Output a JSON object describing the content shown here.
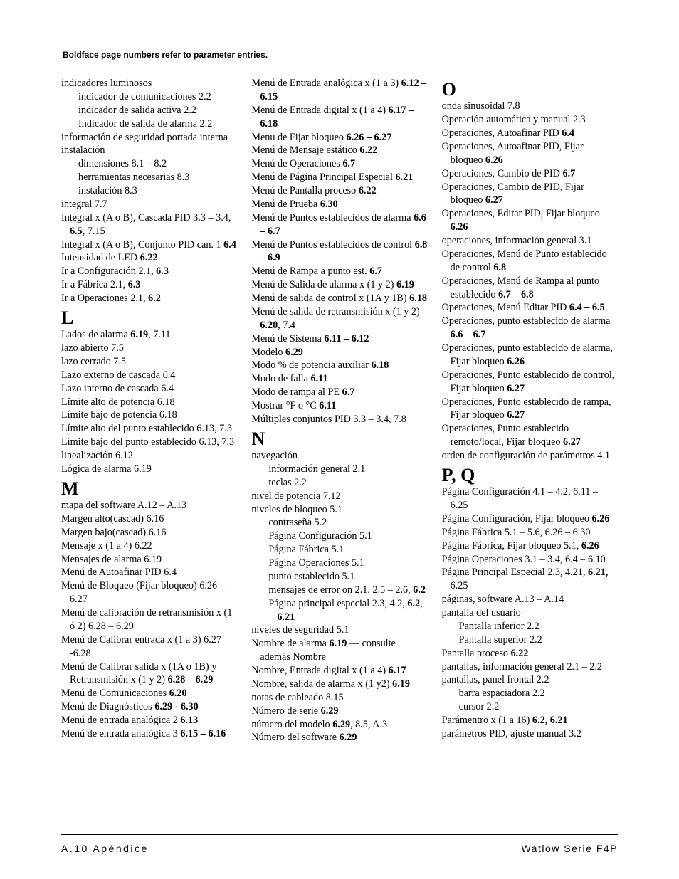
{
  "note": "Boldface page numbers refer to parameter entries.",
  "footer_left": "A.10   Apéndice",
  "footer_right": "Watlow Serie F4P",
  "columns": [
    {
      "items": [
        {
          "t": "entry",
          "bind": "c0.i0",
          "text": "indicadores luminosos"
        },
        {
          "t": "sub1",
          "bind": "c0.i1",
          "text": "indicador de comunicaciones  2.2"
        },
        {
          "t": "sub1",
          "bind": "c0.i2",
          "text": "indicador de salida activa  2.2"
        },
        {
          "t": "sub1",
          "bind": "c0.i3",
          "text": "Indicador de salida de alarma  2.2"
        },
        {
          "t": "entry",
          "bind": "c0.i4",
          "text": "información de seguridad portada interna"
        },
        {
          "t": "entry",
          "bind": "c0.i5",
          "text": "instalación"
        },
        {
          "t": "sub1",
          "bind": "c0.i6",
          "text": "dimensiones  8.1 – 8.2"
        },
        {
          "t": "sub1",
          "bind": "c0.i7",
          "text": "herramientas necesarias  8.3"
        },
        {
          "t": "sub1",
          "bind": "c0.i8",
          "text": "instalación  8.3"
        },
        {
          "t": "entry",
          "bind": "c0.i9",
          "text": "integral  7.7"
        },
        {
          "t": "entry",
          "bind": "c0.i10",
          "html": "Integral x (A o B), Cascada PID  3.3 – 3.4, <b>6.5</b>, 7.15"
        },
        {
          "t": "entry",
          "bind": "c0.i11",
          "html": "Integral x (A o B), Conjunto PID can. 1 <b>6.4</b>"
        },
        {
          "t": "entry",
          "bind": "c0.i12",
          "html": "Intensidad de LED  <b>6.22</b>"
        },
        {
          "t": "entry",
          "bind": "c0.i13",
          "html": "Ir a Configuración  2.1, <b>6.3</b>"
        },
        {
          "t": "entry",
          "bind": "c0.i14",
          "html": "Ir a Fábrica  2.1, <b>6.3</b>"
        },
        {
          "t": "entry",
          "bind": "c0.i15",
          "html": "Ir a Operaciones  2.1, <b>6.2</b>"
        },
        {
          "t": "letter",
          "bind": "c0.L1",
          "text": "L"
        },
        {
          "t": "entry",
          "bind": "c0.i16",
          "html": "Lados de alarma  <b>6.19</b>, 7.11"
        },
        {
          "t": "entry",
          "bind": "c0.i17",
          "text": "lazo abierto  7.5"
        },
        {
          "t": "entry",
          "bind": "c0.i18",
          "text": "lazo cerrado  7.5"
        },
        {
          "t": "entry",
          "bind": "c0.i19",
          "text": "Lazo externo de cascada  6.4"
        },
        {
          "t": "entry",
          "bind": "c0.i20",
          "text": "Lazo interno de cascada  6.4"
        },
        {
          "t": "entry",
          "bind": "c0.i21",
          "text": "Límite alto de potencia  6.18"
        },
        {
          "t": "entry",
          "bind": "c0.i22",
          "text": "Límite bajo de potencia  6.18"
        },
        {
          "t": "entry",
          "bind": "c0.i23",
          "text": "Límite alto del punto establecido 6.13, 7.3"
        },
        {
          "t": "entry",
          "bind": "c0.i24",
          "text": "Límite bajo del punto establecido 6.13, 7.3"
        },
        {
          "t": "entry",
          "bind": "c0.i25",
          "text": "linealización  6.12"
        },
        {
          "t": "entry",
          "bind": "c0.i26",
          "text": "Lógica de alarma  6.19"
        },
        {
          "t": "letter",
          "bind": "c0.L2",
          "text": "M"
        },
        {
          "t": "entry",
          "bind": "c0.i27",
          "text": "mapa del software  A.12 – A.13"
        },
        {
          "t": "entry",
          "bind": "c0.i28",
          "text": "Margen alto(cascad)  6.16"
        },
        {
          "t": "entry",
          "bind": "c0.i29",
          "text": "Margen bajo(cascad)  6.16"
        },
        {
          "t": "entry",
          "bind": "c0.i30",
          "text": "Mensaje x (1 a 4)  6.22"
        },
        {
          "t": "entry",
          "bind": "c0.i31",
          "text": "Mensajes de alarma  6.19"
        },
        {
          "t": "entry",
          "bind": "c0.i32",
          "text": "Menú de Autoafinar PID  6.4"
        },
        {
          "t": "entry",
          "bind": "c0.i33",
          "text": "Menú de Bloqueo (Fijar bloqueo)  6.26 – 6.27"
        },
        {
          "t": "entry",
          "bind": "c0.i34",
          "text": "Menú de calibración de retransmisión x (1 ó 2)   6.28 – 6.29"
        },
        {
          "t": "entry",
          "bind": "c0.i35",
          "text": "Menú de Calibrar entrada x (1 a 3)  6.27 -6.28"
        },
        {
          "t": "entry",
          "bind": "c0.i36",
          "html": "Menú de Calibrar salida x (1A o 1B) y Retransmisión x (1 y 2)  <b>6.28 – 6.29</b>"
        },
        {
          "t": "entry",
          "bind": "c0.i37",
          "html": "Menú de Comunicaciones  <b>6.20</b>"
        },
        {
          "t": "entry",
          "bind": "c0.i38",
          "html": "Menú de Diagnósticos  <b>6.29 - 6.30</b>"
        },
        {
          "t": "entry",
          "bind": "c0.i39",
          "html": "Menú de entrada analógica 2  <b>6.13</b>"
        },
        {
          "t": "entry",
          "bind": "c0.i40",
          "html": "Menú de entrada analógica 3  <b>6.15 – 6.16</b>"
        }
      ]
    },
    {
      "items": [
        {
          "t": "entry",
          "bind": "c1.i0",
          "html": "Menú de Entrada analógica x (1 a 3) <b>6.12 – 6.15</b>"
        },
        {
          "t": "entry",
          "bind": "c1.i1",
          "html": "Menú de Entrada digital x (1 a 4)  <b>6.17 – 6.18</b>"
        },
        {
          "t": "entry",
          "bind": "c1.i2",
          "html": "Menu de Fijar bloqueo  <b>6.26 – 6.27</b>"
        },
        {
          "t": "entry",
          "bind": "c1.i3",
          "html": "Menú de Mensaje estático  <b>6.22</b>"
        },
        {
          "t": "entry",
          "bind": "c1.i4",
          "html": "Menú de Operaciones  <b>6.7</b>"
        },
        {
          "t": "entry",
          "bind": "c1.i5",
          "html": "Menú de Página Principal Especial <b>6.21</b>"
        },
        {
          "t": "entry",
          "bind": "c1.i6",
          "html": "Menú de Pantalla proceso  <b>6.22</b>"
        },
        {
          "t": "entry",
          "bind": "c1.i7",
          "html": "Menú de Prueba  <b>6.30</b>"
        },
        {
          "t": "entry",
          "bind": "c1.i8",
          "html": "Menú de Puntos establecidos de alarma <b>6.6 – 6.7</b>"
        },
        {
          "t": "entry",
          "bind": "c1.i9",
          "html": "Menú de Puntos establecidos de control <b>6.8 – 6.9</b>"
        },
        {
          "t": "entry",
          "bind": "c1.i10",
          "html": "Menú de Rampa a punto est.  <b>6.7</b>"
        },
        {
          "t": "entry",
          "bind": "c1.i11",
          "html": "Menú de Salida de alarma x (1 y 2) <b>6.19</b>"
        },
        {
          "t": "entry",
          "bind": "c1.i12",
          "html": "Menú de salida de control x (1A y 1B) <b>6.18</b>"
        },
        {
          "t": "entry",
          "bind": "c1.i13",
          "html": "Menú de salida de retransmisión x (1 y 2)  <b>6.20</b>, 7.4"
        },
        {
          "t": "entry",
          "bind": "c1.i14",
          "html": "Menú de Sistema  <b>6.11 – 6.12</b>"
        },
        {
          "t": "entry",
          "bind": "c1.i15",
          "html": "Modelo  <b>6.29</b>"
        },
        {
          "t": "entry",
          "bind": "c1.i16",
          "html": "Modo % de potencia auxiliar  <b>6.18</b>"
        },
        {
          "t": "entry",
          "bind": "c1.i17",
          "html": "Modo de falla  <b>6.11</b>"
        },
        {
          "t": "entry",
          "bind": "c1.i18",
          "html": "Modo de rampa al PE  <b>6.7</b>"
        },
        {
          "t": "entry",
          "bind": "c1.i19",
          "html": "Mostrar °F o °C  <b>6.11</b>"
        },
        {
          "t": "entry",
          "bind": "c1.i20",
          "text": "Múltiples conjuntos PID  3.3 – 3.4, 7.8"
        },
        {
          "t": "letter",
          "bind": "c1.L1",
          "text": "N"
        },
        {
          "t": "entry",
          "bind": "c1.i21",
          "text": "navegación"
        },
        {
          "t": "sub1",
          "bind": "c1.i22",
          "text": "información general  2.1"
        },
        {
          "t": "sub1",
          "bind": "c1.i23",
          "text": "teclas  2.2"
        },
        {
          "t": "entry",
          "bind": "c1.i24",
          "text": "nivel de potencia  7.12"
        },
        {
          "t": "entry",
          "bind": "c1.i25",
          "text": "niveles de bloqueo  5.1"
        },
        {
          "t": "sub1",
          "bind": "c1.i26",
          "text": "contraseña  5.2"
        },
        {
          "t": "sub1",
          "bind": "c1.i27",
          "text": "Página Configuración 5.1"
        },
        {
          "t": "sub1",
          "bind": "c1.i28",
          "text": "Página Fábrica  5.1"
        },
        {
          "t": "sub1",
          "bind": "c1.i29",
          "text": "Página Operaciones  5.1"
        },
        {
          "t": "sub1",
          "bind": "c1.i30",
          "text": "punto establecido  5.1"
        },
        {
          "t": "sub1",
          "bind": "c1.i31",
          "html": "mensajes de error on  2.1, 2.5 – 2.6, <b>6.2</b>"
        },
        {
          "t": "sub1",
          "bind": "c1.i32",
          "html": "Página principal especial  2.3, 4.2, <b>6.2</b>, <b>6.21</b>"
        },
        {
          "t": "entry",
          "bind": "c1.i33",
          "text": "niveles de seguridad  5.1"
        },
        {
          "t": "entry",
          "bind": "c1.i34",
          "html": "Nombre de alarma  <b>6.19</b> — consulte además Nombre"
        },
        {
          "t": "entry",
          "bind": "c1.i35",
          "html": "Nombre, Entrada digital x (1 a 4)  <b>6.17</b>"
        },
        {
          "t": "entry",
          "bind": "c1.i36",
          "html": "Nombre, salida de alarma x (1 y2)  <b>6.19</b>"
        },
        {
          "t": "entry",
          "bind": "c1.i37",
          "text": "notas de cableado  8.15"
        },
        {
          "t": "entry",
          "bind": "c1.i38",
          "html": "Número de serie  <b>6.29</b>"
        },
        {
          "t": "entry",
          "bind": "c1.i39",
          "html": "número del modelo <b>6.29</b>, 8.5, A.3"
        },
        {
          "t": "entry",
          "bind": "c1.i40",
          "html": "Número del software  <b>6.29</b>"
        }
      ]
    },
    {
      "items": [
        {
          "t": "letter",
          "bind": "c2.L1",
          "text": "O"
        },
        {
          "t": "entry",
          "bind": "c2.i0",
          "text": "onda sinusoidal  7.8"
        },
        {
          "t": "entry",
          "bind": "c2.i1",
          "text": "Operación automática y manual  2.3"
        },
        {
          "t": "entry",
          "bind": "c2.i2",
          "html": "Operaciones, Autoafinar PID  <b>6.4</b>"
        },
        {
          "t": "entry",
          "bind": "c2.i3",
          "html": "Operaciones, Autoafinar PID, Fijar bloqueo  <b>6.26</b>"
        },
        {
          "t": "entry",
          "bind": "c2.i4",
          "html": "Operaciones, Cambio de PID  <b>6.7</b>"
        },
        {
          "t": "entry",
          "bind": "c2.i5",
          "html": "Operaciones, Cambio de PID, Fijar bloqueo  <b>6.27</b>"
        },
        {
          "t": "entry",
          "bind": "c2.i6",
          "html": "Operaciones, Editar PID, Fijar bloqueo <b>6.26</b>"
        },
        {
          "t": "entry",
          "bind": "c2.i7",
          "text": "operaciones, información general  3.1"
        },
        {
          "t": "entry",
          "bind": "c2.i8",
          "html": "Operaciones, Menú de Punto establecido de control  <b>6.8</b>"
        },
        {
          "t": "entry",
          "bind": "c2.i9",
          "html": "Operaciones, Menú de Rampa al punto establecido  <b>6.7 – 6.8</b>"
        },
        {
          "t": "entry",
          "bind": "c2.i10",
          "html": "Operaciones, Menú Editar PID  <b>6.4 – 6.5</b>"
        },
        {
          "t": "entry",
          "bind": "c2.i11",
          "html": "Operaciones, punto establecido de alarma  <b>6.6 – 6.7</b>"
        },
        {
          "t": "entry",
          "bind": "c2.i12",
          "html": "Operaciones, punto establecido de alarma, Fijar bloqueo  <b>6.26</b>"
        },
        {
          "t": "entry",
          "bind": "c2.i13",
          "html": "Operaciones, Punto establecido de control, Fijar bloqueo  <b>6.27</b>"
        },
        {
          "t": "entry",
          "bind": "c2.i14",
          "html": "Operaciones, Punto establecido de rampa, Fijar bloqueo  <b>6.27</b>"
        },
        {
          "t": "entry",
          "bind": "c2.i15",
          "html": "Operaciones, Punto establecido remoto/local, Fijar bloqueo  <b>6.27</b>"
        },
        {
          "t": "entry",
          "bind": "c2.i16",
          "text": "orden de configuración de parámetros  4.1"
        },
        {
          "t": "letter",
          "bind": "c2.L2",
          "text": "P, Q"
        },
        {
          "t": "entry",
          "bind": "c2.i17",
          "text": "Página Configuración  4.1 – 4.2, 6.11 – 6.25"
        },
        {
          "t": "entry",
          "bind": "c2.i18",
          "html": "Página Configuración, Fijar bloqueo <b>6.26</b>"
        },
        {
          "t": "entry",
          "bind": "c2.i19",
          "text": "Página Fábrica  5.1 – 5.6, 6.26 – 6.30"
        },
        {
          "t": "entry",
          "bind": "c2.i20",
          "html": "Página Fábrica, Fijar bloqueo  5.1, <b>6.26</b>"
        },
        {
          "t": "entry",
          "bind": "c2.i21",
          "text": "Página Operaciones  3.1 – 3.4, 6.4 – 6.10"
        },
        {
          "t": "entry",
          "bind": "c2.i22",
          "html": "Página Principal Especial  2.3, 4.21, <b>6.21,</b> 6.25"
        },
        {
          "t": "entry",
          "bind": "c2.i23",
          "text": "páginas, software  A.13 –  A.14"
        },
        {
          "t": "entry",
          "bind": "c2.i24",
          "text": "pantalla del usuario"
        },
        {
          "t": "sub1",
          "bind": "c2.i25",
          "text": "Pantalla inferior  2.2"
        },
        {
          "t": "sub1",
          "bind": "c2.i26",
          "text": "Pantalla superior  2.2"
        },
        {
          "t": "entry",
          "bind": "c2.i27",
          "html": "Pantalla proceso  <b>6.22</b>"
        },
        {
          "t": "entry",
          "bind": "c2.i28",
          "text": "pantallas, información general  2.1 – 2.2"
        },
        {
          "t": "entry",
          "bind": "c2.i29",
          "text": "pantallas, panel frontal  2.2"
        },
        {
          "t": "sub1",
          "bind": "c2.i30",
          "text": "barra espaciadora  2.2"
        },
        {
          "t": "sub1",
          "bind": "c2.i31",
          "text": "cursor  2.2"
        },
        {
          "t": "entry",
          "bind": "c2.i32",
          "html": "Parámentro x (1 a 16)  <b>6.2, 6.21</b>"
        },
        {
          "t": "entry",
          "bind": "c2.i33",
          "text": "parámetros PID, ajuste manual  3.2"
        }
      ]
    }
  ]
}
